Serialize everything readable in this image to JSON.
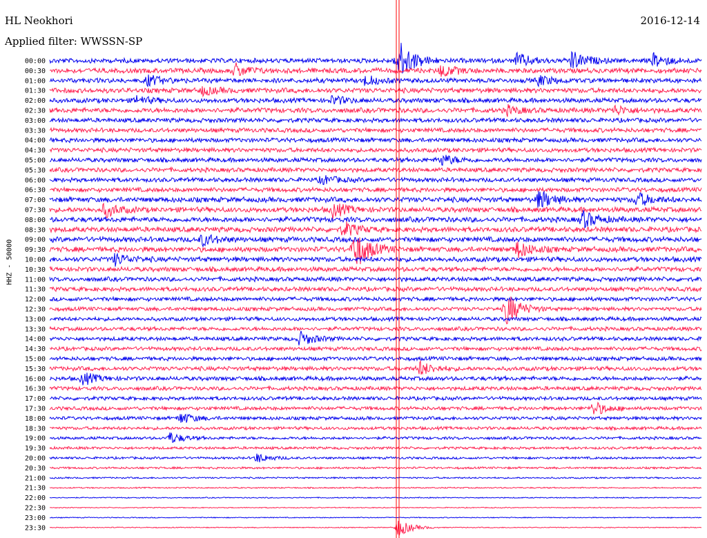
{
  "header": {
    "station": "HL Neokhori",
    "date": "2016-12-14",
    "filter": "Applied filter: WWSSN-SP"
  },
  "axis": {
    "channel_label": "HHZ - 50000"
  },
  "colors": {
    "trace_a": "#0000ee",
    "trace_b": "#ff2050",
    "marker": "#ff0000",
    "text": "#000000"
  },
  "chart_data": {
    "type": "line",
    "title": "HL Neokhori",
    "subtitle": "Applied filter: WWSSN-SP",
    "date": "2016-12-14",
    "ylabel": "HHZ - 50000",
    "row_minutes": 30,
    "categories": [
      "00:00",
      "00:30",
      "01:00",
      "01:30",
      "02:00",
      "02:30",
      "03:00",
      "03:30",
      "04:00",
      "04:30",
      "05:00",
      "05:30",
      "06:00",
      "06:30",
      "07:00",
      "07:30",
      "08:00",
      "08:30",
      "09:00",
      "09:30",
      "10:00",
      "10:30",
      "11:00",
      "11:30",
      "12:00",
      "12:30",
      "13:00",
      "13:30",
      "14:00",
      "14:30",
      "15:00",
      "15:30",
      "16:00",
      "16:30",
      "17:00",
      "17:30",
      "18:00",
      "18:30",
      "19:00",
      "19:30",
      "20:00",
      "20:30",
      "21:00",
      "21:30",
      "22:00",
      "22:30",
      "23:00",
      "23:30"
    ],
    "series": [
      {
        "color": "blue",
        "rows": "even (00:00, 01:00, ...)"
      },
      {
        "color": "red",
        "rows": "odd (00:30, 01:30, ...)"
      }
    ],
    "noise_level": [
      0.9,
      0.95,
      0.9,
      0.95,
      0.9,
      0.95,
      0.85,
      0.85,
      0.85,
      0.85,
      0.85,
      0.85,
      0.85,
      0.85,
      1.0,
      1.0,
      1.0,
      1.0,
      1.0,
      1.0,
      0.95,
      0.9,
      0.85,
      0.85,
      0.8,
      0.75,
      0.75,
      0.75,
      0.75,
      0.75,
      0.75,
      0.8,
      0.8,
      0.75,
      0.7,
      0.7,
      0.65,
      0.6,
      0.55,
      0.5,
      0.45,
      0.4,
      0.3,
      0.25,
      0.2,
      0.18,
      0.18,
      0.18
    ],
    "events": [
      {
        "row": "00:00",
        "minute": 16.0,
        "amplitude": 5.0
      },
      {
        "row": "00:00",
        "minute": 24.0,
        "amplitude": 2.0
      },
      {
        "row": "00:00",
        "minute": 21.5,
        "amplitude": 1.5
      },
      {
        "row": "00:00",
        "minute": 27.8,
        "amplitude": 1.5
      },
      {
        "row": "00:30",
        "minute": 8.5,
        "amplitude": 1.4
      },
      {
        "row": "00:30",
        "minute": 18.0,
        "amplitude": 1.3
      },
      {
        "row": "01:00",
        "minute": 4.5,
        "amplitude": 1.1
      },
      {
        "row": "01:00",
        "minute": 14.5,
        "amplitude": 1.0
      },
      {
        "row": "01:00",
        "minute": 22.5,
        "amplitude": 1.0
      },
      {
        "row": "01:30",
        "minute": 7.0,
        "amplitude": 0.9
      },
      {
        "row": "02:00",
        "minute": 13.0,
        "amplitude": 0.9
      },
      {
        "row": "02:00",
        "minute": 4.0,
        "amplitude": 0.8
      },
      {
        "row": "02:30",
        "minute": 26.0,
        "amplitude": 0.9
      },
      {
        "row": "02:30",
        "minute": 21.0,
        "amplitude": 0.9
      },
      {
        "row": "05:00",
        "minute": 18.0,
        "amplitude": 1.2
      },
      {
        "row": "06:00",
        "minute": 12.5,
        "amplitude": 0.9
      },
      {
        "row": "07:00",
        "minute": 22.5,
        "amplitude": 2.0
      },
      {
        "row": "07:00",
        "minute": 27.0,
        "amplitude": 1.5
      },
      {
        "row": "07:30",
        "minute": 2.5,
        "amplitude": 1.5
      },
      {
        "row": "07:30",
        "minute": 13.0,
        "amplitude": 1.5
      },
      {
        "row": "08:00",
        "minute": 24.5,
        "amplitude": 1.8
      },
      {
        "row": "08:30",
        "minute": 13.5,
        "amplitude": 1.6
      },
      {
        "row": "09:00",
        "minute": 7.0,
        "amplitude": 1.2
      },
      {
        "row": "09:30",
        "minute": 14.0,
        "amplitude": 4.5
      },
      {
        "row": "09:30",
        "minute": 21.5,
        "amplitude": 1.8
      },
      {
        "row": "10:00",
        "minute": 3.0,
        "amplitude": 1.2
      },
      {
        "row": "12:30",
        "minute": 21.0,
        "amplitude": 3.5
      },
      {
        "row": "14:00",
        "minute": 11.5,
        "amplitude": 1.5
      },
      {
        "row": "15:30",
        "minute": 17.0,
        "amplitude": 1.5
      },
      {
        "row": "16:00",
        "minute": 1.5,
        "amplitude": 1.3
      },
      {
        "row": "17:30",
        "minute": 25.0,
        "amplitude": 1.5
      },
      {
        "row": "18:00",
        "minute": 6.0,
        "amplitude": 1.2
      },
      {
        "row": "19:00",
        "minute": 5.5,
        "amplitude": 1.2
      },
      {
        "row": "20:00",
        "minute": 9.5,
        "amplitude": 1.0
      },
      {
        "row": "23:30",
        "minute": 16.0,
        "amplitude": 2.0
      }
    ]
  }
}
